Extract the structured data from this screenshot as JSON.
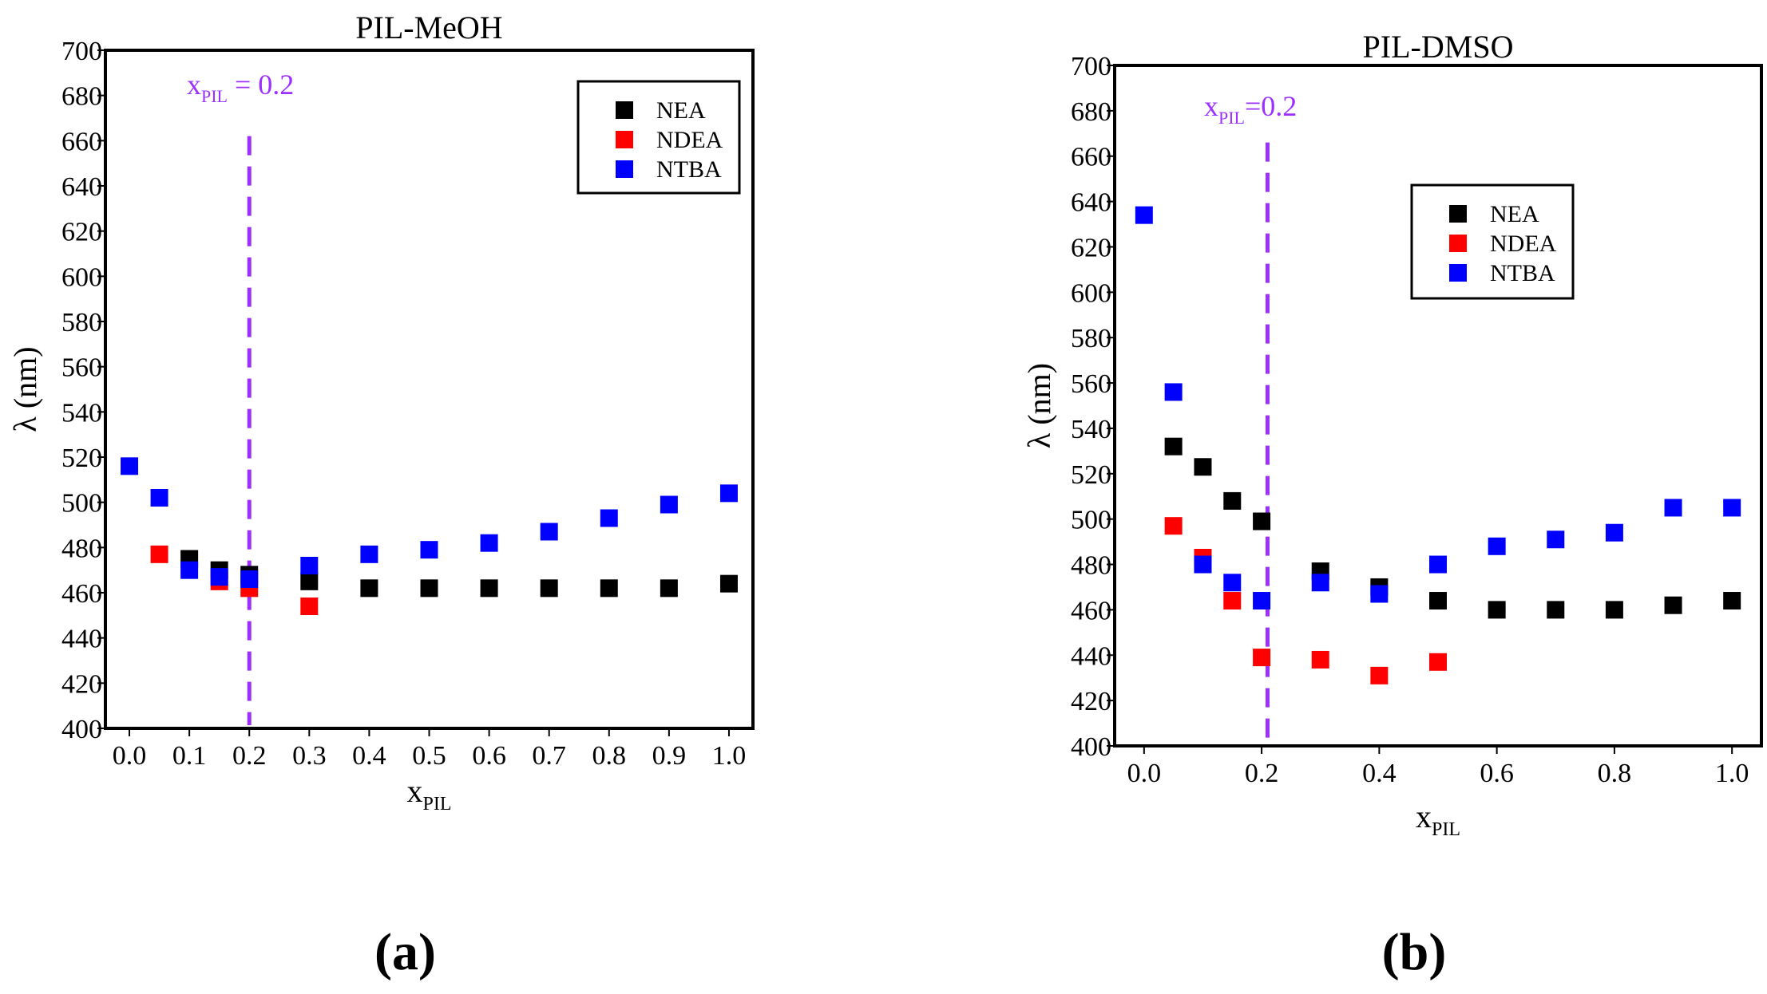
{
  "chart_data": [
    {
      "type": "scatter",
      "title": "PIL-MeOH",
      "panel_label": "(a)",
      "xlabel": {
        "main": "x",
        "sub": "PIL"
      },
      "ylabel": "λ (nm)",
      "xlim": [
        -0.04,
        1.04
      ],
      "ylim": [
        400,
        700
      ],
      "xticks": [
        "0.0",
        "0.1",
        "0.2",
        "0.3",
        "0.4",
        "0.5",
        "0.6",
        "0.7",
        "0.8",
        "0.9",
        "1.0"
      ],
      "xtick_values": [
        0,
        0.1,
        0.2,
        0.3,
        0.4,
        0.5,
        0.6,
        0.7,
        0.8,
        0.9,
        1.0
      ],
      "yticks": [
        400,
        420,
        440,
        460,
        480,
        500,
        520,
        540,
        560,
        580,
        600,
        620,
        640,
        660,
        680,
        700
      ],
      "annotation": {
        "main": "x",
        "sub": "PIL",
        "rest": " = 0.2",
        "x": 0.2,
        "y_top": 662
      },
      "legend_position": "top-right",
      "series": [
        {
          "name": "NEA",
          "color": "#000000",
          "x": [
            0.1,
            0.15,
            0.2,
            0.3,
            0.4,
            0.5,
            0.6,
            0.7,
            0.8,
            0.9,
            1.0
          ],
          "y": [
            475,
            470,
            468,
            465,
            462,
            462,
            462,
            462,
            462,
            462,
            464
          ]
        },
        {
          "name": "NDEA",
          "color": "#ff0000",
          "x": [
            0.05,
            0.15,
            0.2,
            0.3
          ],
          "y": [
            477,
            465,
            462,
            454
          ]
        },
        {
          "name": "NTBA",
          "color": "#0000ff",
          "x": [
            0.0,
            0.05,
            0.1,
            0.15,
            0.2,
            0.3,
            0.4,
            0.5,
            0.6,
            0.7,
            0.8,
            0.9,
            1.0
          ],
          "y": [
            516,
            502,
            470,
            467,
            466,
            472,
            477,
            479,
            482,
            487,
            493,
            499,
            504
          ]
        }
      ]
    },
    {
      "type": "scatter",
      "title": "PIL-DMSO",
      "panel_label": "(b)",
      "xlabel": {
        "main": "x",
        "sub": "PIL"
      },
      "ylabel": "λ (nm)",
      "xlim": [
        -0.05,
        1.05
      ],
      "ylim": [
        400,
        700
      ],
      "xticks": [
        "0.0",
        "0.2",
        "0.4",
        "0.6",
        "0.8",
        "1.0"
      ],
      "xtick_values": [
        0,
        0.2,
        0.4,
        0.6,
        0.8,
        1.0
      ],
      "yticks": [
        400,
        420,
        440,
        460,
        480,
        500,
        520,
        540,
        560,
        580,
        600,
        620,
        640,
        660,
        680,
        700
      ],
      "annotation": {
        "main": "x",
        "sub": "PIL",
        "rest": "=0.2",
        "x": 0.21,
        "y_top": 666
      },
      "legend_position": "top-right",
      "series": [
        {
          "name": "NEA",
          "color": "#000000",
          "x": [
            0.05,
            0.1,
            0.15,
            0.2,
            0.3,
            0.4,
            0.5,
            0.6,
            0.7,
            0.8,
            0.9,
            1.0
          ],
          "y": [
            532,
            523,
            508,
            499,
            477,
            470,
            464,
            460,
            460,
            460,
            462,
            464
          ]
        },
        {
          "name": "NDEA",
          "color": "#ff0000",
          "x": [
            0.05,
            0.1,
            0.15,
            0.2,
            0.3,
            0.4,
            0.5
          ],
          "y": [
            497,
            483,
            464,
            439,
            438,
            431,
            437
          ]
        },
        {
          "name": "NTBA",
          "color": "#0000ff",
          "x": [
            0.0,
            0.05,
            0.1,
            0.15,
            0.2,
            0.3,
            0.4,
            0.5,
            0.6,
            0.7,
            0.8,
            0.9,
            1.0
          ],
          "y": [
            634,
            556,
            480,
            472,
            464,
            472,
            467,
            480,
            488,
            491,
            494,
            505,
            505
          ]
        }
      ]
    }
  ]
}
